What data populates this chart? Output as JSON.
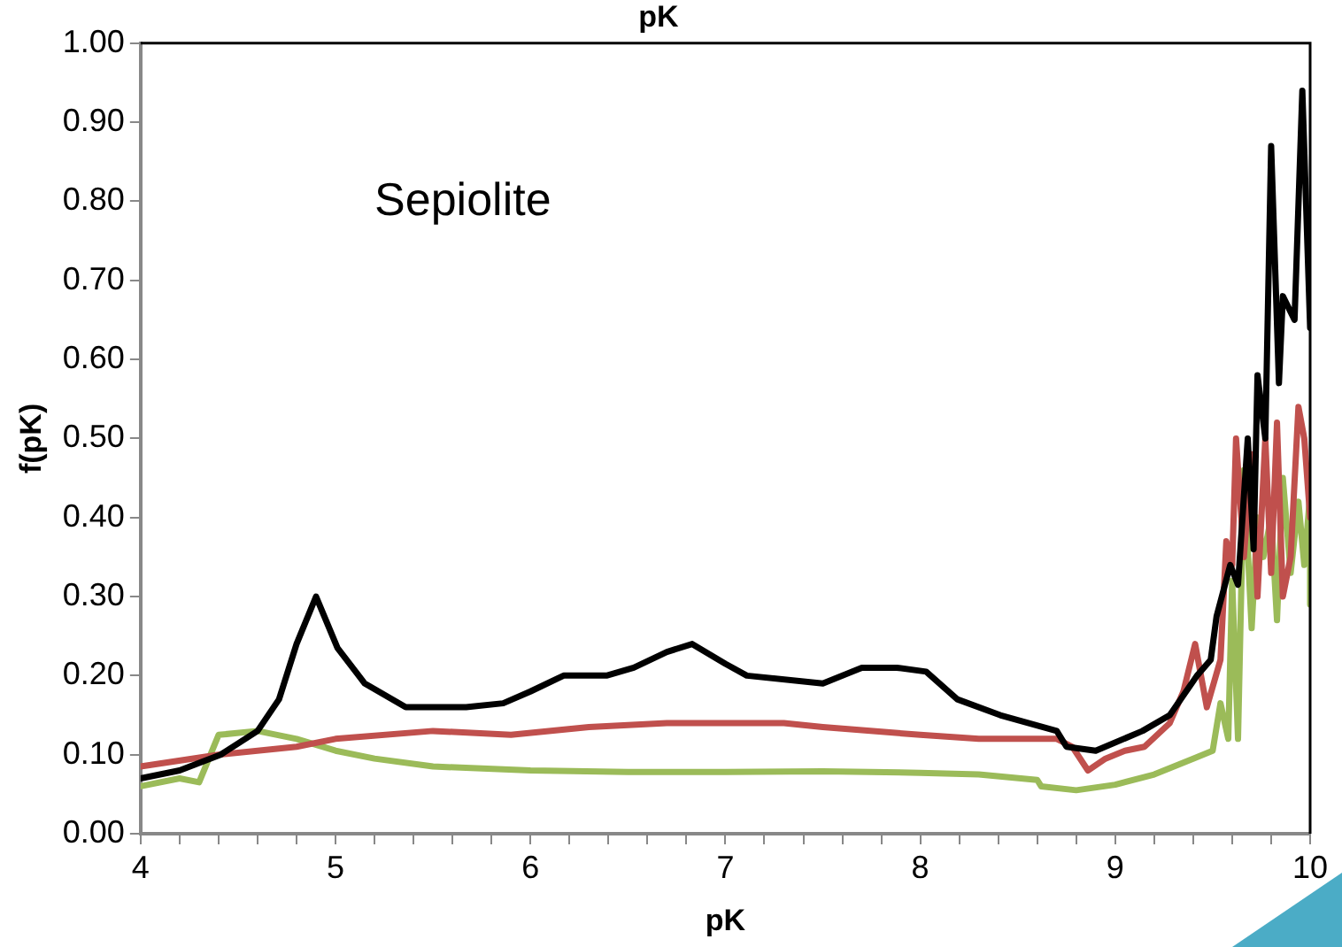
{
  "chart_data": {
    "type": "line",
    "title": "pK",
    "xlabel": "pK",
    "ylabel": "f(pK)",
    "annotations": [
      "Sepiolite"
    ],
    "xlim": [
      4,
      10
    ],
    "xticks": [
      4,
      {
        "value": 4.2,
        "label": null
      },
      {
        "value": 4.4,
        "label": null
      },
      {
        "value": 4.6,
        "label": null
      },
      {
        "value": 4.8,
        "label": null
      },
      5,
      {
        "value": 5.2,
        "label": null
      },
      {
        "value": 5.4,
        "label": null
      },
      {
        "value": 5.6,
        "label": null
      },
      {
        "value": 5.8,
        "label": null
      },
      6,
      {
        "value": 6.2,
        "label": null
      },
      {
        "value": 6.4,
        "label": null
      },
      {
        "value": 6.6,
        "label": null
      },
      {
        "value": 6.8,
        "label": null
      },
      7,
      {
        "value": 7.2,
        "label": null
      },
      {
        "value": 7.4,
        "label": null
      },
      {
        "value": 7.6,
        "label": null
      },
      {
        "value": 7.8,
        "label": null
      },
      8,
      {
        "value": 8.2,
        "label": null
      },
      {
        "value": 8.4,
        "label": null
      },
      {
        "value": 8.6,
        "label": null
      },
      {
        "value": 8.8,
        "label": null
      },
      9,
      {
        "value": 9.2,
        "label": null
      },
      {
        "value": 9.4,
        "label": null
      },
      {
        "value": 9.6,
        "label": null
      },
      {
        "value": 9.8,
        "label": null
      },
      10
    ],
    "ylim": [
      0,
      1
    ],
    "yticks": [
      {
        "value": 0,
        "label": "0.00"
      },
      {
        "value": 0.1,
        "label": "0.10"
      },
      {
        "value": 0.2,
        "label": "0.20"
      },
      {
        "value": 0.3,
        "label": "0.30"
      },
      {
        "value": 0.4,
        "label": "0.40"
      },
      {
        "value": 0.5,
        "label": "0.50"
      },
      {
        "value": 0.6,
        "label": "0.60"
      },
      {
        "value": 0.7,
        "label": "0.70"
      },
      {
        "value": 0.8,
        "label": "0.80"
      },
      {
        "value": 0.9,
        "label": "0.90"
      },
      {
        "value": 1,
        "label": "1.00"
      }
    ],
    "grid": false,
    "legend": false,
    "marker": "none",
    "line_style": "solid",
    "series": [
      {
        "color": "#000000",
        "x": [
          4.0,
          4.2,
          4.41,
          4.6,
          4.71,
          4.8,
          4.9,
          5.01,
          5.15,
          5.36,
          5.67,
          5.86,
          6.0,
          6.17,
          6.39,
          6.53,
          6.7,
          6.83,
          7.0,
          7.11,
          7.5,
          7.7,
          7.88,
          8.03,
          8.19,
          8.41,
          8.7,
          8.75,
          8.9,
          9.14,
          9.28,
          9.42,
          9.49,
          9.52,
          9.59,
          9.63,
          9.68,
          9.71,
          9.73,
          9.77,
          9.8,
          9.84,
          9.86,
          9.92,
          9.96,
          10.0
        ],
        "values": [
          0.07,
          0.08,
          0.1,
          0.13,
          0.17,
          0.24,
          0.3,
          0.235,
          0.19,
          0.16,
          0.16,
          0.165,
          0.18,
          0.2,
          0.2,
          0.21,
          0.23,
          0.24,
          0.215,
          0.2,
          0.19,
          0.21,
          0.21,
          0.205,
          0.17,
          0.15,
          0.13,
          0.11,
          0.105,
          0.13,
          0.15,
          0.2,
          0.22,
          0.275,
          0.34,
          0.315,
          0.5,
          0.36,
          0.58,
          0.5,
          0.87,
          0.57,
          0.68,
          0.65,
          0.94,
          0.64
        ]
      },
      {
        "color": "#c0504d",
        "x": [
          4.0,
          4.4,
          4.8,
          5.0,
          5.5,
          5.9,
          6.3,
          6.7,
          7.3,
          7.5,
          8.0,
          8.3,
          8.7,
          8.78,
          8.86,
          8.95,
          9.05,
          9.15,
          9.28,
          9.35,
          9.41,
          9.47,
          9.54,
          9.57,
          9.6,
          9.62,
          9.66,
          9.7,
          9.73,
          9.77,
          9.8,
          9.83,
          9.86,
          9.9,
          9.94,
          9.97,
          10.0
        ],
        "values": [
          0.085,
          0.1,
          0.11,
          0.12,
          0.13,
          0.125,
          0.135,
          0.14,
          0.14,
          0.135,
          0.125,
          0.12,
          0.12,
          0.11,
          0.08,
          0.095,
          0.105,
          0.11,
          0.14,
          0.18,
          0.24,
          0.16,
          0.22,
          0.37,
          0.34,
          0.5,
          0.35,
          0.48,
          0.3,
          0.5,
          0.33,
          0.52,
          0.3,
          0.35,
          0.54,
          0.5,
          0.4
        ]
      },
      {
        "color": "#9bbb59",
        "x": [
          4.0,
          4.2,
          4.3,
          4.4,
          4.6,
          4.8,
          5.0,
          5.2,
          5.5,
          6.0,
          6.5,
          7.0,
          7.5,
          8.0,
          8.3,
          8.6,
          8.62,
          8.8,
          9.0,
          9.2,
          9.4,
          9.5,
          9.54,
          9.58,
          9.6,
          9.63,
          9.66,
          9.7,
          9.73,
          9.76,
          9.8,
          9.83,
          9.86,
          9.9,
          9.94,
          9.97,
          10.0,
          10.0
        ],
        "values": [
          0.06,
          0.07,
          0.065,
          0.125,
          0.13,
          0.12,
          0.105,
          0.095,
          0.085,
          0.08,
          0.078,
          0.078,
          0.079,
          0.077,
          0.075,
          0.068,
          0.06,
          0.055,
          0.062,
          0.075,
          0.095,
          0.105,
          0.165,
          0.12,
          0.32,
          0.12,
          0.46,
          0.26,
          0.4,
          0.35,
          0.4,
          0.27,
          0.45,
          0.33,
          0.42,
          0.34,
          0.43,
          0.29
        ]
      }
    ]
  }
}
